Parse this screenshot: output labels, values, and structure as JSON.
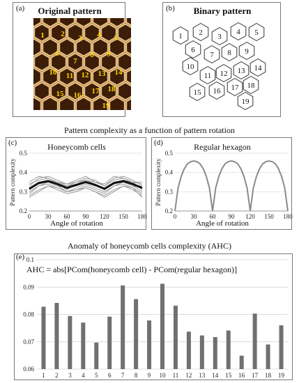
{
  "panel_a": {
    "label": "(a)",
    "title": "Original pattern",
    "cells": [
      "1",
      "2",
      "3",
      "4",
      "5",
      "6",
      "7",
      "8",
      "9",
      "10",
      "11",
      "12",
      "13",
      "14",
      "15",
      "16",
      "17",
      "18",
      "19"
    ]
  },
  "panel_b": {
    "label": "(b)",
    "title": "Binary pattern",
    "cells": [
      "1",
      "2",
      "3",
      "4",
      "5",
      "6",
      "7",
      "8",
      "9",
      "10",
      "11",
      "12",
      "13",
      "14",
      "15",
      "16",
      "17",
      "18",
      "19"
    ]
  },
  "section_title": "Pattern complexity as a function of pattern rotation",
  "section_title_2": "Anomaly of honeycomb cells complexity (AHC)",
  "colors": {
    "honey": "#9a5a1c",
    "cell_number": "#ffd500",
    "bar": "#707070",
    "mean_line": "#111111",
    "hex_line": "#8a8a8a"
  },
  "chart_data": [
    {
      "id": "c",
      "label": "(c)",
      "type": "line",
      "title": "Honeycomb cells",
      "xlabel": "Angle of rotation",
      "ylabel": "Pattern complexity",
      "xlim": [
        0,
        180
      ],
      "ylim": [
        0.2,
        0.5
      ],
      "xticks": [
        0,
        30,
        60,
        90,
        120,
        150,
        180
      ],
      "yticks": [
        "0.2",
        "0.3",
        "0.4",
        "0.5"
      ],
      "x": [
        0,
        15,
        30,
        45,
        60,
        75,
        90,
        105,
        120,
        135,
        150,
        165,
        180
      ],
      "mean_series": [
        0.315,
        0.345,
        0.355,
        0.34,
        0.32,
        0.335,
        0.35,
        0.335,
        0.315,
        0.345,
        0.355,
        0.34,
        0.32
      ],
      "cell_series": [
        [
          0.3,
          0.33,
          0.35,
          0.33,
          0.3,
          0.32,
          0.34,
          0.32,
          0.3,
          0.33,
          0.35,
          0.33,
          0.3
        ],
        [
          0.33,
          0.37,
          0.38,
          0.36,
          0.34,
          0.36,
          0.38,
          0.35,
          0.33,
          0.37,
          0.38,
          0.36,
          0.33
        ],
        [
          0.28,
          0.31,
          0.33,
          0.31,
          0.29,
          0.3,
          0.32,
          0.3,
          0.28,
          0.31,
          0.33,
          0.31,
          0.28
        ],
        [
          0.31,
          0.35,
          0.36,
          0.35,
          0.33,
          0.34,
          0.36,
          0.34,
          0.31,
          0.35,
          0.36,
          0.35,
          0.31
        ],
        [
          0.34,
          0.36,
          0.37,
          0.35,
          0.34,
          0.35,
          0.37,
          0.36,
          0.33,
          0.36,
          0.37,
          0.35,
          0.34
        ],
        [
          0.29,
          0.33,
          0.34,
          0.32,
          0.3,
          0.31,
          0.33,
          0.31,
          0.29,
          0.33,
          0.34,
          0.32,
          0.29
        ],
        [
          0.32,
          0.34,
          0.36,
          0.34,
          0.31,
          0.34,
          0.36,
          0.34,
          0.32,
          0.34,
          0.36,
          0.34,
          0.32
        ],
        [
          0.35,
          0.38,
          0.37,
          0.35,
          0.33,
          0.35,
          0.36,
          0.35,
          0.34,
          0.38,
          0.37,
          0.35,
          0.35
        ],
        [
          0.27,
          0.3,
          0.33,
          0.32,
          0.3,
          0.31,
          0.32,
          0.3,
          0.27,
          0.3,
          0.33,
          0.32,
          0.27
        ],
        [
          0.32,
          0.35,
          0.35,
          0.33,
          0.32,
          0.33,
          0.35,
          0.33,
          0.32,
          0.35,
          0.35,
          0.33,
          0.32
        ]
      ]
    },
    {
      "id": "d",
      "label": "(d)",
      "type": "line",
      "title": "Regular hexagon",
      "xlabel": "Angle of rotation",
      "ylabel": "Pattern complexity",
      "xlim": [
        0,
        180
      ],
      "ylim": [
        0.2,
        0.5
      ],
      "xticks": [
        0,
        30,
        60,
        90,
        120,
        150,
        180
      ],
      "yticks": [
        "0.2",
        "0.3",
        "0.4",
        "0.5"
      ],
      "x": [
        0,
        5,
        10,
        15,
        20,
        25,
        30,
        35,
        40,
        45,
        50,
        55,
        60,
        65,
        70,
        75,
        80,
        85,
        90,
        95,
        100,
        105,
        110,
        115,
        120,
        125,
        130,
        135,
        140,
        145,
        150,
        155,
        160,
        165,
        170,
        175,
        180
      ],
      "values": [
        0.2,
        0.32,
        0.38,
        0.42,
        0.445,
        0.456,
        0.46,
        0.456,
        0.445,
        0.42,
        0.38,
        0.32,
        0.2,
        0.32,
        0.38,
        0.42,
        0.445,
        0.456,
        0.46,
        0.456,
        0.445,
        0.42,
        0.38,
        0.32,
        0.2,
        0.32,
        0.38,
        0.42,
        0.445,
        0.456,
        0.46,
        0.456,
        0.445,
        0.42,
        0.38,
        0.32,
        0.2
      ]
    },
    {
      "id": "e",
      "label": "(e)",
      "type": "bar",
      "annotation": "AHC = abs[PCom(honeycomb cell) - PCom(regular hexagon)]",
      "categories": [
        "1",
        "2",
        "3",
        "4",
        "5",
        "6",
        "7",
        "8",
        "9",
        "10",
        "11",
        "12",
        "13",
        "14",
        "15",
        "16",
        "17",
        "18",
        "19"
      ],
      "values": [
        0.0828,
        0.0842,
        0.0794,
        0.077,
        0.0697,
        0.0792,
        0.0906,
        0.0856,
        0.0778,
        0.0912,
        0.0832,
        0.0737,
        0.0723,
        0.0717,
        0.0741,
        0.0649,
        0.0803,
        0.069,
        0.076
      ],
      "ylim": [
        0.06,
        0.1
      ],
      "yticks": [
        "0.06",
        "0.07",
        "0.08",
        "0.09",
        "0.1"
      ],
      "grid": true
    }
  ]
}
